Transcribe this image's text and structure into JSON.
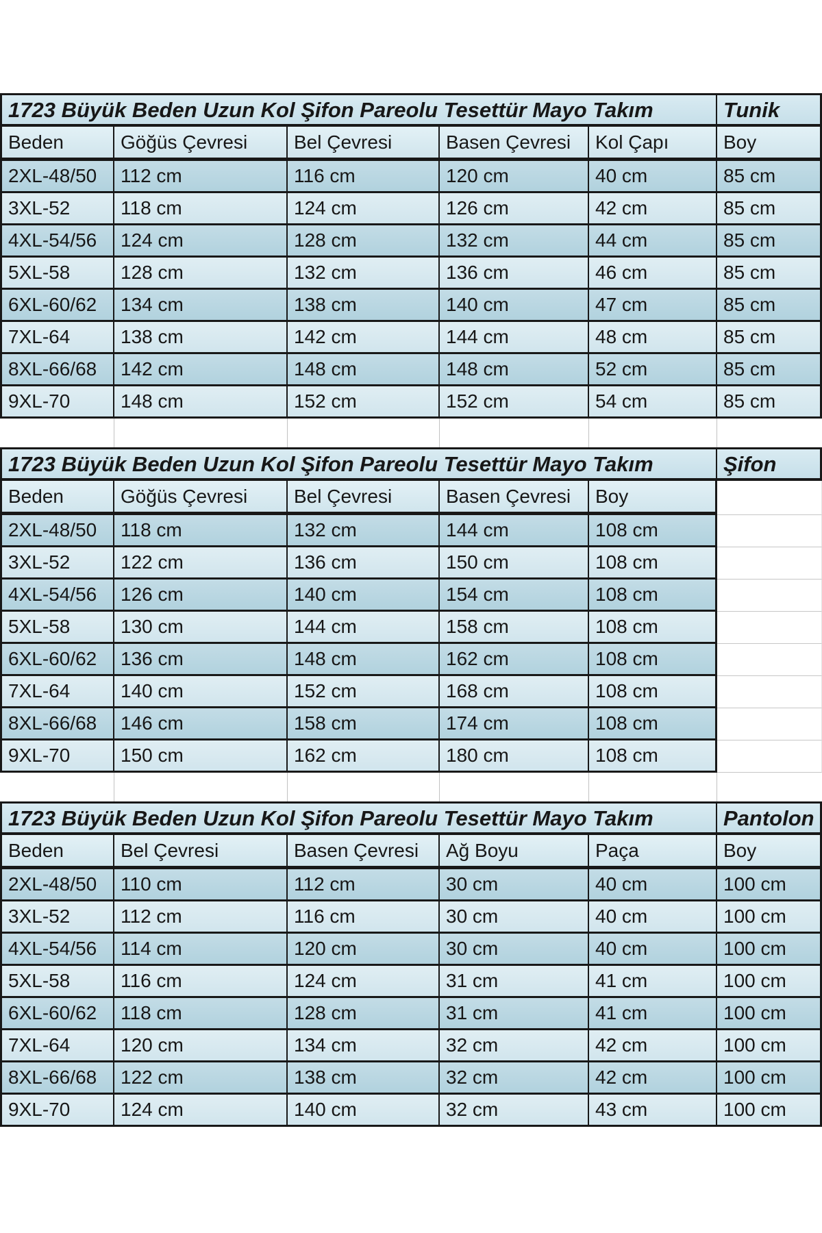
{
  "colors": {
    "title_bg": "#cde3ec",
    "header_bg": "#d7e9f0",
    "row_dark": "#b8d7e2",
    "row_light": "#d9eaf0",
    "border": "#181818",
    "text": "#171717",
    "page_bg": "#ffffff"
  },
  "tables": [
    {
      "title": "1723 Büyük Beden Uzun Kol Şifon Pareolu Tesettür Mayo Takım",
      "tag": "Tunik",
      "columns": [
        "Beden",
        "Göğüs Çevresi",
        "Bel Çevresi",
        "Basen Çevresi",
        "Kol Çapı",
        "Boy"
      ],
      "rows": [
        [
          "2XL-48/50",
          "112 cm",
          "116 cm",
          "120 cm",
          "40 cm",
          "85 cm"
        ],
        [
          "3XL-52",
          "118 cm",
          "124 cm",
          "126 cm",
          "42 cm",
          "85 cm"
        ],
        [
          "4XL-54/56",
          "124 cm",
          "128 cm",
          "132 cm",
          "44 cm",
          "85 cm"
        ],
        [
          "5XL-58",
          "128 cm",
          "132 cm",
          "136 cm",
          "46 cm",
          "85 cm"
        ],
        [
          "6XL-60/62",
          "134 cm",
          "138 cm",
          "140 cm",
          "47 cm",
          "85 cm"
        ],
        [
          "7XL-64",
          "138 cm",
          "142 cm",
          "144 cm",
          "48 cm",
          "85 cm"
        ],
        [
          "8XL-66/68",
          "142 cm",
          "148 cm",
          "148 cm",
          "52 cm",
          "85 cm"
        ],
        [
          "9XL-70",
          "148 cm",
          "152 cm",
          "152 cm",
          "54 cm",
          "85 cm"
        ]
      ]
    },
    {
      "title": "1723 Büyük Beden Uzun Kol Şifon Pareolu Tesettür Mayo Takım",
      "tag": "Şifon",
      "columns": [
        "Beden",
        "Göğüs Çevresi",
        "Bel Çevresi",
        "Basen Çevresi",
        "Boy"
      ],
      "rows": [
        [
          "2XL-48/50",
          "118 cm",
          "132 cm",
          "144 cm",
          "108 cm"
        ],
        [
          "3XL-52",
          "122 cm",
          "136 cm",
          "150 cm",
          "108 cm"
        ],
        [
          "4XL-54/56",
          "126 cm",
          "140 cm",
          "154 cm",
          "108 cm"
        ],
        [
          "5XL-58",
          "130 cm",
          "144 cm",
          "158 cm",
          "108 cm"
        ],
        [
          "6XL-60/62",
          "136 cm",
          "148 cm",
          "162 cm",
          "108 cm"
        ],
        [
          "7XL-64",
          "140 cm",
          "152 cm",
          "168 cm",
          "108 cm"
        ],
        [
          "8XL-66/68",
          "146 cm",
          "158 cm",
          "174 cm",
          "108 cm"
        ],
        [
          "9XL-70",
          "150 cm",
          "162 cm",
          "180 cm",
          "108 cm"
        ]
      ]
    },
    {
      "title": "1723 Büyük Beden Uzun Kol Şifon Pareolu Tesettür Mayo Takım",
      "tag": "Pantolon",
      "columns": [
        "Beden",
        "Bel Çevresi",
        "Basen Çevresi",
        "Ağ Boyu",
        "Paça",
        "Boy"
      ],
      "rows": [
        [
          "2XL-48/50",
          "110 cm",
          "112 cm",
          "30 cm",
          "40 cm",
          "100 cm"
        ],
        [
          "3XL-52",
          "112 cm",
          "116 cm",
          "30 cm",
          "40 cm",
          "100 cm"
        ],
        [
          "4XL-54/56",
          "114 cm",
          "120 cm",
          "30 cm",
          "40 cm",
          "100 cm"
        ],
        [
          "5XL-58",
          "116 cm",
          "124 cm",
          "31 cm",
          "41 cm",
          "100 cm"
        ],
        [
          "6XL-60/62",
          "118 cm",
          "128 cm",
          "31 cm",
          "41 cm",
          "100 cm"
        ],
        [
          "7XL-64",
          "120 cm",
          "134 cm",
          "32 cm",
          "42 cm",
          "100 cm"
        ],
        [
          "8XL-66/68",
          "122 cm",
          "138 cm",
          "32 cm",
          "42 cm",
          "100 cm"
        ],
        [
          "9XL-70",
          "124 cm",
          "140 cm",
          "32 cm",
          "43 cm",
          "100 cm"
        ]
      ]
    }
  ]
}
